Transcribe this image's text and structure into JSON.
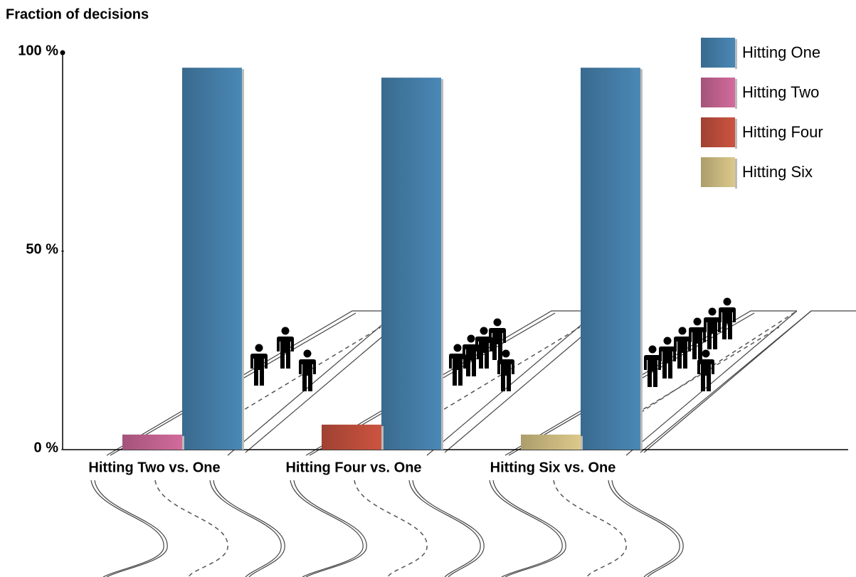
{
  "chart_data": {
    "type": "bar",
    "y_label": "Fraction of decisions",
    "categories": [
      "Hitting Two vs. One",
      "Hitting Four vs. One",
      "Hitting Six vs. One"
    ],
    "series": [
      {
        "name": "Hitting One",
        "color": "#4a88b6",
        "values": [
          96.2,
          93.7,
          96.2
        ]
      },
      {
        "name": "Hitting Two",
        "color": "#d26b9c",
        "values": [
          3.8,
          null,
          null
        ]
      },
      {
        "name": "Hitting Four",
        "color": "#cc5440",
        "values": [
          null,
          6.3,
          null
        ]
      },
      {
        "name": "Hitting Six",
        "color": "#dcc98a",
        "values": [
          null,
          null,
          3.8
        ]
      }
    ],
    "ylim": [
      0,
      100
    ],
    "yticks": [
      {
        "value": 0,
        "label": "0 %"
      },
      {
        "value": 50,
        "label": "50 %"
      },
      {
        "value": 100,
        "label": "100 %"
      }
    ],
    "legend": "top-right"
  }
}
